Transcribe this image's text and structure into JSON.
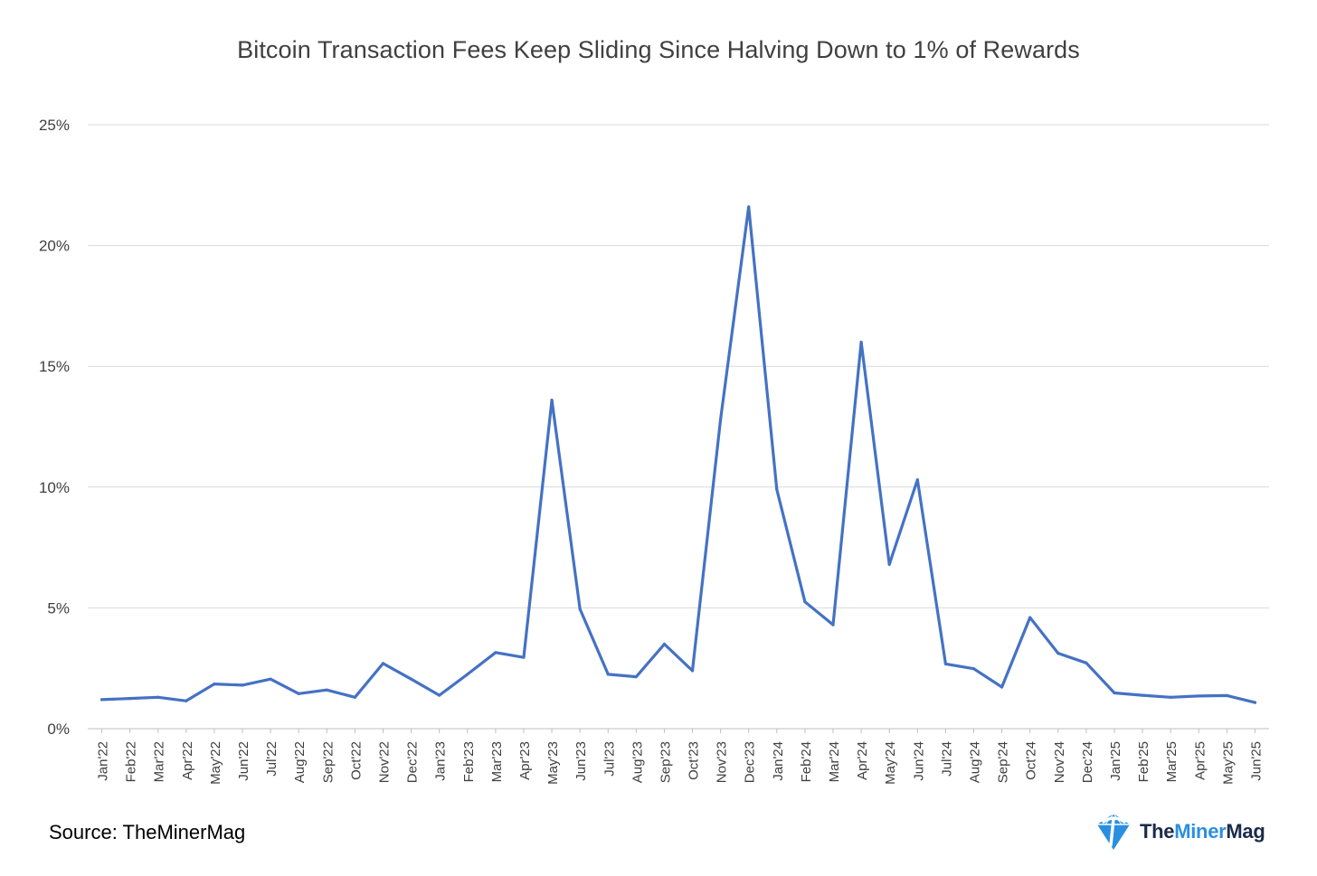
{
  "chart_data": {
    "type": "line",
    "title": "Bitcoin Transaction Fees Keep Sliding Since Halving Down to 1% of Rewards",
    "xlabel": "",
    "ylabel": "",
    "ylim": [
      0,
      25
    ],
    "yticks": [
      "0%",
      "5%",
      "10%",
      "15%",
      "20%",
      "25%"
    ],
    "ytick_values": [
      0,
      5,
      10,
      15,
      20,
      25
    ],
    "grid": true,
    "legend": "none",
    "line_color": "#4472c4",
    "categories": [
      "Jan'22",
      "Feb'22",
      "Mar'22",
      "Apr'22",
      "May'22",
      "Jun'22",
      "Jul'22",
      "Aug'22",
      "Sep'22",
      "Oct'22",
      "Nov'22",
      "Dec'22",
      "Jan'23",
      "Feb'23",
      "Mar'23",
      "Apr'23",
      "May'23",
      "Jun'23",
      "Jul'23",
      "Aug'23",
      "Sep'23",
      "Oct'23",
      "Nov'23",
      "Dec'23",
      "Jan'24",
      "Feb'24",
      "Mar'24",
      "Apr'24",
      "May'24",
      "Jun'24",
      "Jul'24",
      "Aug'24",
      "Sep'24",
      "Oct'24",
      "Nov'24",
      "Dec'24",
      "Jan'25",
      "Feb'25",
      "Mar'25",
      "Apr'25",
      "May'25",
      "Jun'25"
    ],
    "series": [
      {
        "values": [
          1.2,
          1.25,
          1.3,
          1.15,
          1.85,
          1.8,
          2.05,
          1.45,
          1.6,
          1.3,
          2.7,
          2.05,
          1.38,
          2.25,
          3.15,
          2.95,
          13.6,
          4.95,
          2.25,
          2.15,
          3.5,
          2.4,
          12.8,
          21.6,
          9.9,
          5.25,
          4.3,
          16.0,
          6.8,
          10.3,
          2.68,
          2.48,
          1.72,
          4.6,
          3.12,
          2.72,
          1.48,
          1.38,
          1.3,
          1.35,
          1.37,
          1.08
        ]
      }
    ]
  },
  "source_text": "Source: TheMinerMag",
  "logo": {
    "part1": "The",
    "part2": "Miner",
    "part3": "Mag",
    "icon": "pickaxe-diamond-icon",
    "brand_color": "#2a8fe0"
  }
}
